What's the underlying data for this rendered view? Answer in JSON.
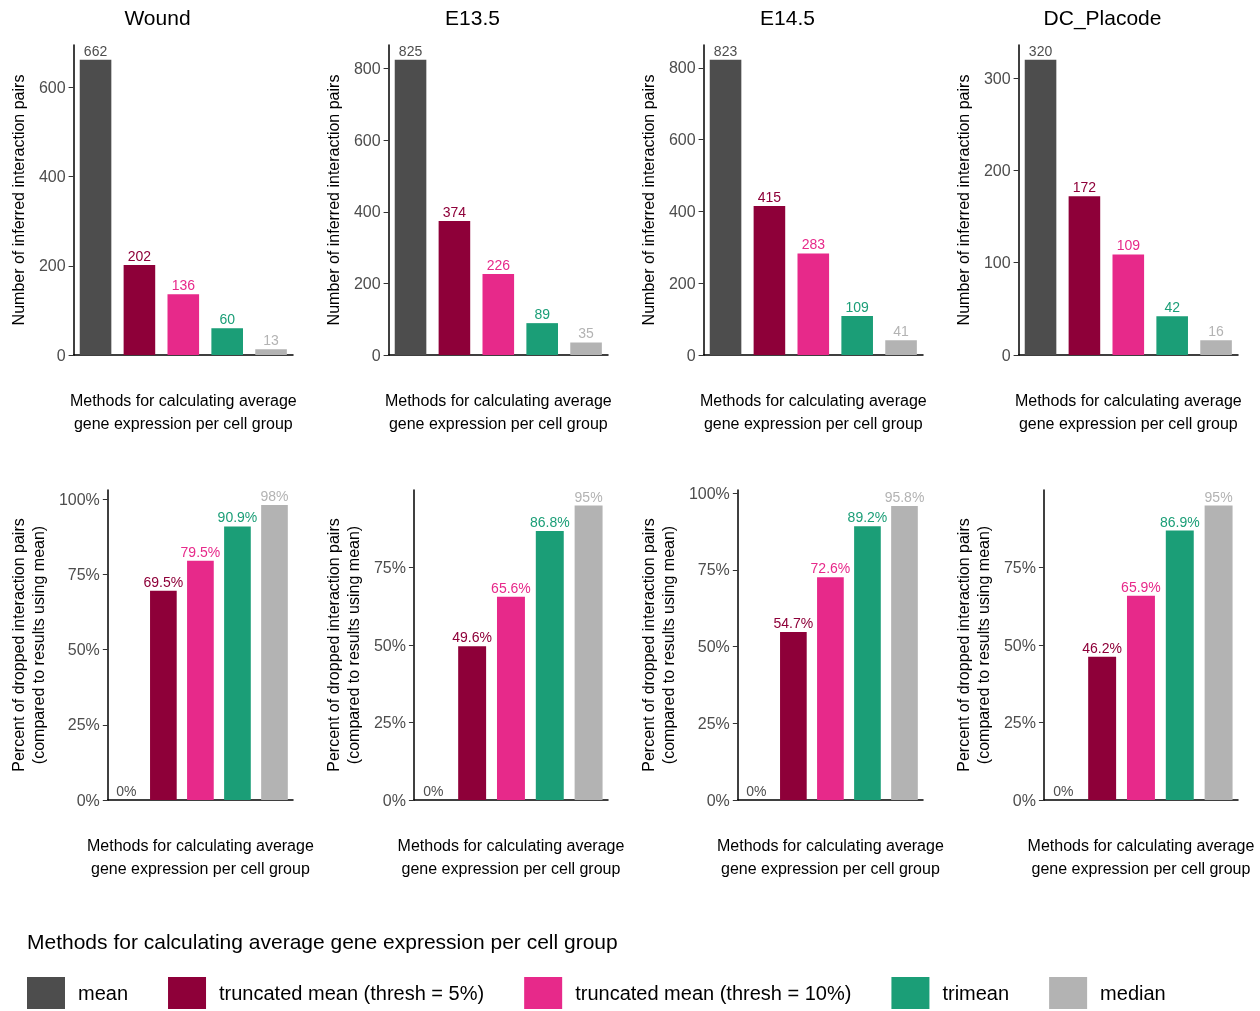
{
  "chart_data": [
    {
      "type": "bar",
      "title": "Wound",
      "ylabel": "Number of inferred interaction pairs",
      "xlabel": "Methods for calculating average\ngene expression per cell group",
      "categories": [
        null,
        null,
        null,
        null,
        null
      ],
      "ylim": [
        0,
        695
      ],
      "yticks": [
        0,
        200,
        400,
        600
      ],
      "data_labels": true,
      "legend": "bottom",
      "legend_title": "Methods for calculating average gene expression per cell group",
      "series": [
        {
          "name": "mean",
          "color": "#4d4d4d",
          "values": [
            662,
            null,
            null,
            null,
            null
          ]
        },
        {
          "name": "truncated mean (thresh = 5%)",
          "color": "#8e0039",
          "values": [
            null,
            202,
            null,
            null,
            null
          ]
        },
        {
          "name": "truncated mean (thresh = 10%)",
          "color": "#e7298a",
          "values": [
            null,
            null,
            136,
            null,
            null
          ]
        },
        {
          "name": "trimean",
          "color": "#1b9e77",
          "values": [
            null,
            null,
            null,
            60,
            null
          ]
        },
        {
          "name": "median",
          "color": "#b3b3b3",
          "values": [
            null,
            null,
            null,
            null,
            13
          ]
        }
      ]
    },
    {
      "type": "bar",
      "title": "E13.5",
      "ylabel": "Number of inferred interaction pairs",
      "xlabel": "Methods for calculating average\ngene expression per cell group",
      "categories": [
        null,
        null,
        null,
        null,
        null
      ],
      "ylim": [
        0,
        866
      ],
      "yticks": [
        0,
        200,
        400,
        600,
        800
      ],
      "data_labels": true,
      "series": [
        {
          "color": "#4d4d4d",
          "values": [
            825,
            null,
            null,
            null,
            null
          ]
        },
        {
          "color": "#8e0039",
          "values": [
            null,
            374,
            null,
            null,
            null
          ]
        },
        {
          "color": "#e7298a",
          "values": [
            null,
            null,
            226,
            null,
            null
          ]
        },
        {
          "color": "#1b9e77",
          "values": [
            null,
            null,
            null,
            89,
            null
          ]
        },
        {
          "color": "#b3b3b3",
          "values": [
            null,
            null,
            null,
            null,
            35
          ]
        }
      ]
    },
    {
      "type": "bar",
      "title": "E14.5",
      "ylabel": "Number of inferred interaction pairs",
      "xlabel": "Methods for calculating average\ngene expression per cell group",
      "categories": [
        null,
        null,
        null,
        null,
        null
      ],
      "ylim": [
        0,
        864
      ],
      "yticks": [
        0,
        200,
        400,
        600,
        800
      ],
      "data_labels": true,
      "series": [
        {
          "color": "#4d4d4d",
          "values": [
            823,
            null,
            null,
            null,
            null
          ]
        },
        {
          "color": "#8e0039",
          "values": [
            null,
            415,
            null,
            null,
            null
          ]
        },
        {
          "color": "#e7298a",
          "values": [
            null,
            null,
            283,
            null,
            null
          ]
        },
        {
          "color": "#1b9e77",
          "values": [
            null,
            null,
            null,
            109,
            null
          ]
        },
        {
          "color": "#b3b3b3",
          "values": [
            null,
            null,
            null,
            null,
            41
          ]
        }
      ]
    },
    {
      "type": "bar",
      "title": "DC_Placode",
      "ylabel": "Number of inferred interaction pairs",
      "xlabel": "Methods for calculating average\ngene expression per cell group",
      "categories": [
        null,
        null,
        null,
        null,
        null
      ],
      "ylim": [
        0,
        336
      ],
      "yticks": [
        0,
        100,
        200,
        300
      ],
      "data_labels": true,
      "series": [
        {
          "color": "#4d4d4d",
          "values": [
            320,
            null,
            null,
            null,
            null
          ]
        },
        {
          "color": "#8e0039",
          "values": [
            null,
            172,
            null,
            null,
            null
          ]
        },
        {
          "color": "#e7298a",
          "values": [
            null,
            null,
            109,
            null,
            null
          ]
        },
        {
          "color": "#1b9e77",
          "values": [
            null,
            null,
            null,
            42,
            null
          ]
        },
        {
          "color": "#b3b3b3",
          "values": [
            null,
            null,
            null,
            null,
            16
          ]
        }
      ]
    },
    {
      "type": "bar",
      "ylabel": "Percent of dropped interaction pairs\n(compared to results using mean)",
      "xlabel": "Methods for calculating average\ngene expression per cell group",
      "categories": [
        null,
        null,
        null,
        null,
        null
      ],
      "ylim": [
        0,
        103
      ],
      "yticks": [
        {
          "value": 0,
          "label": "0%"
        },
        {
          "value": 25,
          "label": "25%"
        },
        {
          "value": 50,
          "label": "50%"
        },
        {
          "value": 75,
          "label": "75%"
        },
        {
          "value": 100,
          "label": "100%"
        }
      ],
      "series": [
        {
          "color": "#4d4d4d",
          "values": [
            0,
            null,
            null,
            null,
            null
          ],
          "value_labels": [
            "0%",
            null,
            null,
            null,
            null
          ]
        },
        {
          "color": "#8e0039",
          "values": [
            null,
            69.5,
            null,
            null,
            null
          ],
          "value_labels": [
            null,
            "69.5%",
            null,
            null,
            null
          ]
        },
        {
          "color": "#e7298a",
          "values": [
            null,
            null,
            79.5,
            null,
            null
          ],
          "value_labels": [
            null,
            null,
            "79.5%",
            null,
            null
          ]
        },
        {
          "color": "#1b9e77",
          "values": [
            null,
            null,
            null,
            90.9,
            null
          ],
          "value_labels": [
            null,
            null,
            null,
            "90.9%",
            null
          ]
        },
        {
          "color": "#b3b3b3",
          "values": [
            null,
            null,
            null,
            null,
            98
          ],
          "value_labels": [
            null,
            null,
            null,
            null,
            "98%"
          ]
        }
      ]
    },
    {
      "type": "bar",
      "ylabel": "Percent of dropped interaction pairs\n(compared to results using mean)",
      "xlabel": "Methods for calculating average\ngene expression per cell group",
      "categories": [
        null,
        null,
        null,
        null,
        null
      ],
      "ylim": [
        0,
        100
      ],
      "yticks": [
        {
          "value": 0,
          "label": "0%"
        },
        {
          "value": 25,
          "label": "25%"
        },
        {
          "value": 50,
          "label": "50%"
        },
        {
          "value": 75,
          "label": "75%"
        }
      ],
      "series": [
        {
          "color": "#4d4d4d",
          "values": [
            0,
            null,
            null,
            null,
            null
          ],
          "value_labels": [
            "0%",
            null,
            null,
            null,
            null
          ]
        },
        {
          "color": "#8e0039",
          "values": [
            null,
            49.6,
            null,
            null,
            null
          ],
          "value_labels": [
            null,
            "49.6%",
            null,
            null,
            null
          ]
        },
        {
          "color": "#e7298a",
          "values": [
            null,
            null,
            65.6,
            null,
            null
          ],
          "value_labels": [
            null,
            null,
            "65.6%",
            null,
            null
          ]
        },
        {
          "color": "#1b9e77",
          "values": [
            null,
            null,
            null,
            86.8,
            null
          ],
          "value_labels": [
            null,
            null,
            null,
            "86.8%",
            null
          ]
        },
        {
          "color": "#b3b3b3",
          "values": [
            null,
            null,
            null,
            null,
            95
          ],
          "value_labels": [
            null,
            null,
            null,
            null,
            "95%"
          ]
        }
      ]
    },
    {
      "type": "bar",
      "ylabel": "Percent of dropped interaction pairs\n(compared to results using mean)",
      "xlabel": "Methods for calculating average\ngene expression per cell group",
      "categories": [
        null,
        null,
        null,
        null,
        null
      ],
      "ylim": [
        0,
        101
      ],
      "yticks": [
        {
          "value": 0,
          "label": "0%"
        },
        {
          "value": 25,
          "label": "25%"
        },
        {
          "value": 50,
          "label": "50%"
        },
        {
          "value": 75,
          "label": "75%"
        },
        {
          "value": 100,
          "label": "100%"
        }
      ],
      "series": [
        {
          "color": "#4d4d4d",
          "values": [
            0,
            null,
            null,
            null,
            null
          ],
          "value_labels": [
            "0%",
            null,
            null,
            null,
            null
          ]
        },
        {
          "color": "#8e0039",
          "values": [
            null,
            54.7,
            null,
            null,
            null
          ],
          "value_labels": [
            null,
            "54.7%",
            null,
            null,
            null
          ]
        },
        {
          "color": "#e7298a",
          "values": [
            null,
            null,
            72.6,
            null,
            null
          ],
          "value_labels": [
            null,
            null,
            "72.6%",
            null,
            null
          ]
        },
        {
          "color": "#1b9e77",
          "values": [
            null,
            null,
            null,
            89.2,
            null
          ],
          "value_labels": [
            null,
            null,
            null,
            "89.2%",
            null
          ]
        },
        {
          "color": "#b3b3b3",
          "values": [
            null,
            null,
            null,
            null,
            95.8
          ],
          "value_labels": [
            null,
            null,
            null,
            null,
            "95.8%"
          ]
        }
      ]
    },
    {
      "type": "bar",
      "ylabel": "Percent of dropped interaction pairs\n(compared to results using mean)",
      "xlabel": "Methods for calculating average\ngene expression per cell group",
      "categories": [
        null,
        null,
        null,
        null,
        null
      ],
      "ylim": [
        0,
        100
      ],
      "yticks": [
        {
          "value": 0,
          "label": "0%"
        },
        {
          "value": 25,
          "label": "25%"
        },
        {
          "value": 50,
          "label": "50%"
        },
        {
          "value": 75,
          "label": "75%"
        }
      ],
      "series": [
        {
          "color": "#4d4d4d",
          "values": [
            0,
            null,
            null,
            null,
            null
          ],
          "value_labels": [
            "0%",
            null,
            null,
            null,
            null
          ]
        },
        {
          "color": "#8e0039",
          "values": [
            null,
            46.2,
            null,
            null,
            null
          ],
          "value_labels": [
            null,
            "46.2%",
            null,
            null,
            null
          ]
        },
        {
          "color": "#e7298a",
          "values": [
            null,
            null,
            65.9,
            null,
            null
          ],
          "value_labels": [
            null,
            null,
            "65.9%",
            null,
            null
          ]
        },
        {
          "color": "#1b9e77",
          "values": [
            null,
            null,
            null,
            86.9,
            null
          ],
          "value_labels": [
            null,
            null,
            null,
            "86.9%",
            null
          ]
        },
        {
          "color": "#b3b3b3",
          "values": [
            null,
            null,
            null,
            null,
            95
          ],
          "value_labels": [
            null,
            null,
            null,
            null,
            "95%"
          ]
        }
      ]
    }
  ]
}
